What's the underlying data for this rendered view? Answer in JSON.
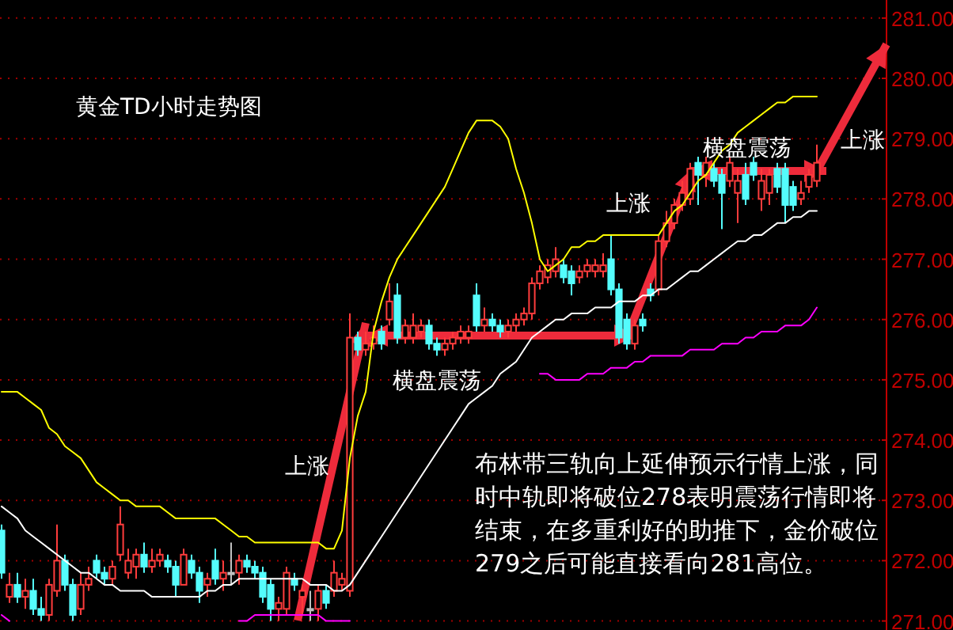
{
  "chart_data": {
    "type": "candlestick",
    "title": "黄金TD小时走势图",
    "categories": [
      null,
      null,
      null,
      null,
      null,
      null,
      null,
      null,
      null,
      null,
      null,
      null,
      null,
      null,
      null,
      null,
      null,
      null,
      null,
      null,
      null,
      null,
      null,
      null,
      null,
      null,
      null,
      null,
      null,
      null,
      null,
      null,
      null,
      null,
      null,
      null,
      null,
      null,
      null,
      null,
      null,
      null,
      null,
      null,
      null,
      null,
      null,
      null,
      null,
      null,
      null,
      null,
      null,
      null,
      null,
      null,
      null,
      null,
      null,
      null,
      null,
      null,
      null,
      null,
      null,
      null,
      null,
      null,
      null,
      null,
      null,
      null,
      null,
      null,
      null,
      null,
      null,
      null,
      null,
      null,
      null,
      null,
      null,
      null,
      null,
      null,
      null,
      null,
      null,
      null,
      null,
      null,
      null,
      null,
      null,
      null,
      null,
      null,
      null,
      null,
      null,
      null,
      null,
      null
    ],
    "ohlc": [
      [
        272.5,
        272.6,
        271.7,
        271.8
      ],
      [
        271.4,
        271.8,
        271.3,
        271.6
      ],
      [
        271.6,
        271.8,
        271.3,
        271.4
      ],
      [
        271.4,
        271.7,
        271.2,
        271.5
      ],
      [
        271.5,
        271.7,
        271.1,
        271.2
      ],
      [
        271.2,
        271.4,
        271.0,
        271.1
      ],
      [
        271.1,
        271.7,
        271.0,
        271.6
      ],
      [
        271.5,
        272.6,
        271.4,
        272.0
      ],
      [
        272.0,
        272.1,
        271.5,
        271.6
      ],
      [
        271.6,
        271.7,
        271.0,
        271.1
      ],
      [
        271.2,
        271.8,
        271.1,
        271.6
      ],
      [
        271.6,
        271.9,
        271.5,
        271.7
      ],
      [
        272.0,
        272.1,
        271.7,
        271.8
      ],
      [
        271.8,
        271.9,
        271.6,
        271.7
      ],
      [
        271.7,
        272.0,
        271.6,
        271.9
      ],
      [
        272.1,
        272.9,
        272.0,
        272.6
      ],
      [
        271.8,
        272.2,
        271.7,
        272.0
      ],
      [
        271.9,
        272.2,
        271.7,
        272.1
      ],
      [
        272.1,
        272.3,
        271.8,
        271.9
      ],
      [
        271.9,
        272.2,
        271.8,
        272.0
      ],
      [
        272.0,
        272.2,
        271.9,
        272.1
      ],
      [
        272.0,
        272.1,
        271.8,
        271.9
      ],
      [
        271.9,
        272.0,
        271.4,
        271.6
      ],
      [
        271.6,
        272.2,
        271.6,
        272.1
      ],
      [
        272.0,
        272.1,
        271.7,
        271.8
      ],
      [
        271.8,
        271.9,
        271.3,
        271.5
      ],
      [
        271.6,
        271.8,
        271.4,
        271.7
      ],
      [
        272.0,
        272.2,
        271.6,
        271.7
      ],
      [
        271.7,
        272.0,
        271.5,
        271.8
      ],
      [
        271.8,
        272.3,
        271.6,
        271.8
      ],
      [
        271.8,
        272.1,
        271.6,
        272.0
      ],
      [
        272.0,
        272.1,
        271.8,
        271.9
      ],
      [
        271.9,
        272.0,
        271.7,
        271.8
      ],
      [
        271.8,
        271.9,
        271.3,
        271.4
      ],
      [
        271.6,
        271.7,
        271.0,
        271.2
      ],
      [
        271.2,
        271.4,
        271.0,
        271.3
      ],
      [
        271.2,
        271.9,
        271.1,
        271.8
      ],
      [
        271.7,
        271.8,
        271.5,
        271.6
      ],
      [
        271.4,
        271.6,
        271.1,
        271.5
      ],
      [
        271.2,
        271.5,
        271.0,
        271.2
      ],
      [
        271.2,
        271.6,
        271.0,
        271.5
      ],
      [
        271.5,
        271.6,
        271.2,
        271.3
      ],
      [
        271.5,
        272.0,
        271.4,
        271.8
      ],
      [
        271.6,
        271.8,
        271.5,
        271.7
      ],
      [
        271.5,
        276.1,
        271.4,
        275.7
      ],
      [
        275.7,
        275.8,
        275.4,
        275.5
      ],
      [
        275.5,
        275.8,
        275.4,
        275.6
      ],
      [
        275.6,
        275.9,
        275.5,
        275.7
      ],
      [
        275.8,
        275.9,
        275.5,
        275.6
      ],
      [
        276.0,
        276.6,
        275.9,
        276.3
      ],
      [
        276.4,
        276.6,
        275.6,
        275.7
      ],
      [
        275.7,
        276.0,
        275.6,
        275.9
      ],
      [
        275.7,
        276.1,
        275.6,
        275.9
      ],
      [
        275.8,
        276.0,
        275.7,
        275.9
      ],
      [
        275.9,
        276.0,
        275.5,
        275.6
      ],
      [
        275.6,
        275.7,
        275.4,
        275.5
      ],
      [
        275.5,
        275.7,
        275.4,
        275.6
      ],
      [
        275.6,
        275.8,
        275.5,
        275.7
      ],
      [
        275.7,
        275.9,
        275.6,
        275.8
      ],
      [
        275.7,
        275.9,
        275.6,
        275.8
      ],
      [
        276.4,
        276.6,
        275.8,
        275.9
      ],
      [
        275.9,
        276.2,
        275.8,
        276.0
      ],
      [
        276.0,
        276.1,
        275.8,
        275.9
      ],
      [
        275.9,
        276.0,
        275.7,
        275.8
      ],
      [
        275.8,
        276.0,
        275.7,
        275.9
      ],
      [
        275.9,
        276.1,
        275.8,
        276.0
      ],
      [
        276.0,
        276.2,
        275.9,
        276.1
      ],
      [
        276.1,
        276.7,
        276.0,
        276.6
      ],
      [
        276.6,
        276.9,
        276.5,
        276.8
      ],
      [
        276.7,
        277.0,
        276.6,
        276.9
      ],
      [
        276.8,
        277.2,
        276.7,
        277.0
      ],
      [
        276.9,
        277.0,
        276.6,
        276.7
      ],
      [
        276.8,
        276.9,
        276.4,
        276.6
      ],
      [
        276.7,
        276.9,
        276.6,
        276.8
      ],
      [
        276.8,
        277.0,
        276.7,
        276.9
      ],
      [
        276.8,
        277.0,
        276.7,
        276.9
      ],
      [
        276.8,
        277.1,
        276.7,
        276.9
      ],
      [
        277.0,
        277.4,
        276.4,
        276.5
      ],
      [
        276.5,
        276.6,
        275.6,
        275.7
      ],
      [
        276.0,
        276.1,
        275.5,
        275.6
      ],
      [
        275.6,
        276.0,
        275.5,
        275.9
      ],
      [
        276.0,
        276.1,
        275.8,
        275.9
      ],
      [
        276.5,
        276.6,
        276.3,
        276.4
      ],
      [
        276.5,
        277.4,
        276.4,
        277.3
      ],
      [
        277.3,
        277.8,
        277.2,
        277.6
      ],
      [
        277.6,
        278.0,
        277.5,
        277.9
      ],
      [
        277.9,
        278.3,
        277.8,
        278.1
      ],
      [
        278.0,
        278.6,
        277.9,
        278.5
      ],
      [
        278.6,
        278.7,
        277.9,
        278.4
      ],
      [
        278.4,
        278.7,
        278.2,
        278.6
      ],
      [
        278.5,
        278.6,
        278.2,
        278.3
      ],
      [
        278.4,
        278.5,
        277.5,
        278.1
      ],
      [
        278.3,
        278.7,
        278.2,
        278.6
      ],
      [
        278.1,
        278.5,
        277.6,
        278.3
      ],
      [
        278.4,
        278.6,
        277.9,
        278.0
      ],
      [
        278.6,
        278.7,
        278.3,
        278.4
      ],
      [
        278.0,
        278.5,
        277.8,
        278.3
      ],
      [
        278.1,
        278.5,
        277.9,
        278.4
      ],
      [
        278.5,
        278.6,
        278.1,
        278.2
      ],
      [
        278.5,
        278.6,
        277.6,
        277.9
      ],
      [
        278.2,
        278.3,
        277.8,
        277.9
      ],
      [
        278.0,
        278.3,
        277.9,
        278.1
      ],
      [
        278.2,
        278.5,
        278.1,
        278.4
      ],
      [
        278.3,
        278.9,
        278.2,
        278.6
      ]
    ],
    "colors": [
      "#54fcfc",
      "#ff3c3c",
      "#54fcfc",
      "#ff3c3c",
      "#54fcfc",
      "#54fcfc",
      "#ff3c3c",
      "#ff3c3c",
      "#54fcfc",
      "#54fcfc",
      "#ff3c3c",
      "#ff3c3c",
      "#54fcfc",
      "#54fcfc",
      "#ff3c3c",
      "#ff3c3c",
      "#ff3c3c",
      "#ff3c3c",
      "#54fcfc",
      "#ff3c3c",
      "#ff3c3c",
      "#54fcfc",
      "#54fcfc",
      "#ff3c3c",
      "#54fcfc",
      "#54fcfc",
      "#ff3c3c",
      "#54fcfc",
      "#ff3c3c",
      "#c0c0c0",
      "#ff3c3c",
      "#54fcfc",
      "#54fcfc",
      "#54fcfc",
      "#54fcfc",
      "#ff3c3c",
      "#ff3c3c",
      "#54fcfc",
      "#ff3c3c",
      "#c0c0c0",
      "#ff3c3c",
      "#54fcfc",
      "#ff3c3c",
      "#ff3c3c",
      "#ff3c3c",
      "#54fcfc",
      "#ff3c3c",
      "#ff3c3c",
      "#54fcfc",
      "#ff3c3c",
      "#54fcfc",
      "#ff3c3c",
      "#ff3c3c",
      "#ff3c3c",
      "#54fcfc",
      "#54fcfc",
      "#ff3c3c",
      "#ff3c3c",
      "#ff3c3c",
      "#ff3c3c",
      "#54fcfc",
      "#ff3c3c",
      "#54fcfc",
      "#54fcfc",
      "#ff3c3c",
      "#ff3c3c",
      "#ff3c3c",
      "#ff3c3c",
      "#ff3c3c",
      "#ff3c3c",
      "#ff3c3c",
      "#54fcfc",
      "#54fcfc",
      "#ff3c3c",
      "#ff3c3c",
      "#ff3c3c",
      "#ff3c3c",
      "#54fcfc",
      "#54fcfc",
      "#54fcfc",
      "#ff3c3c",
      "#54fcfc",
      "#54fcfc",
      "#ff3c3c",
      "#ff3c3c",
      "#ff3c3c",
      "#ff3c3c",
      "#ff3c3c",
      "#54fcfc",
      "#ff3c3c",
      "#54fcfc",
      "#54fcfc",
      "#ff3c3c",
      "#ff3c3c",
      "#54fcfc",
      "#54fcfc",
      "#ff3c3c",
      "#ff3c3c",
      "#54fcfc",
      "#54fcfc",
      "#54fcfc",
      "#ff3c3c",
      "#ff3c3c",
      "#ff3c3c"
    ],
    "series": [
      {
        "type": "line",
        "color": "#ffff00",
        "values": [
          274.8,
          274.8,
          274.8,
          274.7,
          274.6,
          274.5,
          274.2,
          274.1,
          273.9,
          273.8,
          273.7,
          273.5,
          273.3,
          273.2,
          273.1,
          273.0,
          273.0,
          272.9,
          272.9,
          272.9,
          272.9,
          272.8,
          272.7,
          272.7,
          272.7,
          272.7,
          272.7,
          272.7,
          272.6,
          272.5,
          272.4,
          272.4,
          272.3,
          272.3,
          272.3,
          272.3,
          272.3,
          272.3,
          272.3,
          272.3,
          272.3,
          272.2,
          272.2,
          272.5,
          273.7,
          274.4,
          274.8,
          275.8,
          276.3,
          276.7,
          277.0,
          277.2,
          277.4,
          277.6,
          277.8,
          278.0,
          278.2,
          278.5,
          278.8,
          279.1,
          279.3,
          279.3,
          279.3,
          279.2,
          279.0,
          278.5,
          278.1,
          277.6,
          277.0,
          276.8,
          276.9,
          277.0,
          277.2,
          277.2,
          277.3,
          277.3,
          277.4,
          277.4,
          277.4,
          277.4,
          277.4,
          277.4,
          277.4,
          277.4,
          277.6,
          277.8,
          277.9,
          278.1,
          278.3,
          278.4,
          278.6,
          278.8,
          278.9,
          279.1,
          279.2,
          279.3,
          279.4,
          279.5,
          279.6,
          279.6,
          279.7,
          279.7,
          279.7,
          279.7
        ]
      },
      {
        "type": "line",
        "color": "#ffffff",
        "values": [
          272.9,
          272.8,
          272.7,
          272.5,
          272.4,
          272.3,
          272.2,
          272.1,
          272.0,
          271.9,
          271.8,
          271.8,
          271.7,
          271.6,
          271.6,
          271.5,
          271.5,
          271.5,
          271.5,
          271.4,
          271.4,
          271.4,
          271.4,
          271.4,
          271.4,
          271.4,
          271.5,
          271.5,
          271.6,
          271.6,
          271.7,
          271.7,
          271.7,
          271.7,
          271.7,
          271.7,
          271.7,
          271.7,
          271.7,
          271.6,
          271.6,
          271.6,
          271.5,
          271.5,
          271.6,
          271.8,
          272.0,
          272.2,
          272.4,
          272.6,
          272.8,
          273.0,
          273.2,
          273.4,
          273.6,
          273.8,
          274.0,
          274.2,
          274.4,
          274.6,
          274.7,
          274.8,
          274.9,
          275.1,
          275.2,
          275.3,
          275.5,
          275.7,
          275.8,
          275.9,
          276.0,
          276.0,
          276.1,
          276.1,
          276.1,
          276.2,
          276.2,
          276.2,
          276.3,
          276.3,
          276.3,
          276.4,
          276.4,
          276.5,
          276.5,
          276.6,
          276.7,
          276.8,
          276.8,
          276.9,
          277.0,
          277.1,
          277.2,
          277.3,
          277.3,
          277.4,
          277.4,
          277.5,
          277.6,
          277.6,
          277.7,
          277.7,
          277.8,
          277.8
        ]
      },
      {
        "type": "line",
        "color": "#ff00ff",
        "values": [
          271.1,
          271.0,
          null,
          null,
          null,
          null,
          null,
          null,
          null,
          null,
          null,
          null,
          null,
          null,
          null,
          null,
          null,
          null,
          null,
          null,
          null,
          null,
          null,
          null,
          null,
          null,
          null,
          null,
          null,
          null,
          271.0,
          271.0,
          271.1,
          271.1,
          271.1,
          271.1,
          271.1,
          271.1,
          271.1,
          271.1,
          271.1,
          271.0,
          271.0,
          271.0,
          271.0,
          null,
          null,
          null,
          null,
          null,
          null,
          null,
          null,
          null,
          null,
          null,
          null,
          null,
          null,
          null,
          null,
          null,
          null,
          null,
          null,
          null,
          null,
          null,
          275.1,
          275.1,
          275.0,
          275.0,
          275.0,
          275.0,
          275.1,
          275.1,
          275.1,
          275.2,
          275.2,
          275.2,
          275.3,
          275.3,
          275.4,
          275.4,
          275.4,
          275.4,
          275.4,
          275.5,
          275.5,
          275.5,
          275.5,
          275.6,
          275.6,
          275.6,
          275.7,
          275.7,
          275.8,
          275.8,
          275.8,
          275.9,
          275.9,
          275.9,
          276.0,
          276.2
        ]
      }
    ],
    "ylim": [
      270.85,
      281.3
    ],
    "yticks": [
      {
        "value": 271,
        "label": "271.00"
      },
      {
        "value": 272,
        "label": "272.00"
      },
      {
        "value": 273,
        "label": "273.00"
      },
      {
        "value": 274,
        "label": "274.00"
      },
      {
        "value": 275,
        "label": "275.00"
      },
      {
        "value": 276,
        "label": "276.00"
      },
      {
        "value": 277,
        "label": "277.00"
      },
      {
        "value": 278,
        "label": "278.00"
      },
      {
        "value": 279,
        "label": "279.00"
      },
      {
        "value": 280,
        "label": "280.00"
      },
      {
        "value": 281,
        "label": "281.00"
      }
    ],
    "grid": "y",
    "tick_labels": "y",
    "annotations": [
      "上涨",
      "横盘震荡",
      "上涨",
      "横盘震荡",
      "上涨",
      "布林带三轨向上延伸预示行情上涨，同时中轨即将破位278表明震荡行情即将结束，在多重利好的助推下，金价破位279之后可能直接看向281高位。"
    ]
  }
}
